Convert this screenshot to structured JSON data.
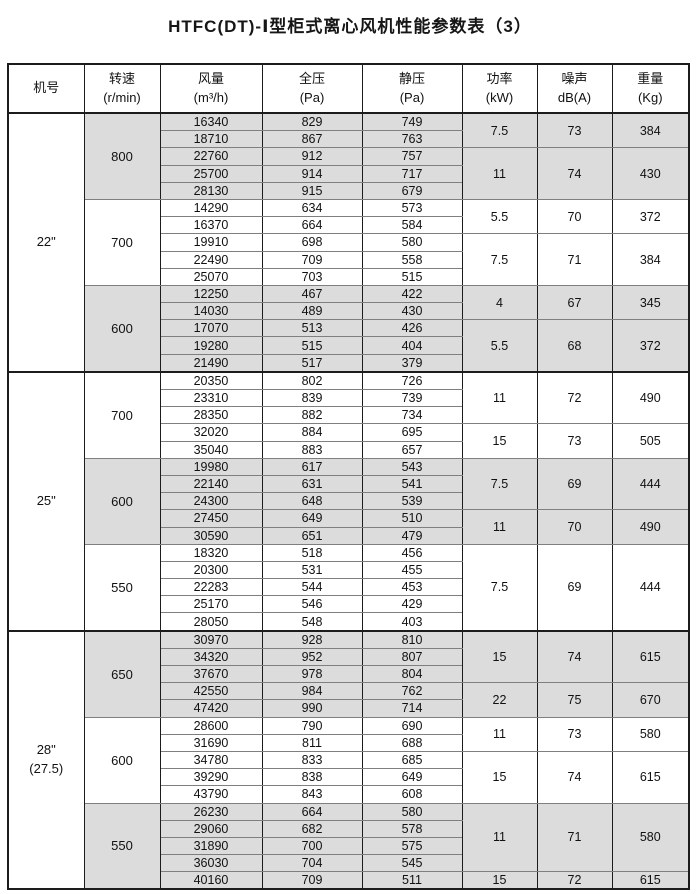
{
  "title": "HTFC(DT)-Ⅰ型柜式离心风机性能参数表（3）",
  "colors": {
    "shaded_row_bg": "#dcdcdc",
    "border_dark": "#1c1c1c",
    "border_inner": "#7f7f7f"
  },
  "table": {
    "headers": [
      {
        "line1": "机号",
        "line2": ""
      },
      {
        "line1": "转速",
        "line2": "(r/min)"
      },
      {
        "line1": "风量",
        "line2": "(m³/h)"
      },
      {
        "line1": "全压",
        "line2": "(Pa)"
      },
      {
        "line1": "静压",
        "line2": "(Pa)"
      },
      {
        "line1": "功率",
        "line2": "(kW)"
      },
      {
        "line1": "噪声",
        "line2": "dB(A)"
      },
      {
        "line1": "重量",
        "line2": "(Kg)"
      }
    ],
    "sections": [
      {
        "model_lines": [
          "22\""
        ],
        "blocks": [
          {
            "speed": "800",
            "shaded": true,
            "rows": [
              [
                "16340",
                "829",
                "749"
              ],
              [
                "18710",
                "867",
                "763"
              ],
              [
                "22760",
                "912",
                "757"
              ],
              [
                "25700",
                "914",
                "717"
              ],
              [
                "28130",
                "915",
                "679"
              ]
            ],
            "perf_groups": [
              {
                "span": 2,
                "power": "7.5",
                "noise": "73",
                "weight": "384"
              },
              {
                "span": 3,
                "power": "11",
                "noise": "74",
                "weight": "430"
              }
            ]
          },
          {
            "speed": "700",
            "shaded": false,
            "rows": [
              [
                "14290",
                "634",
                "573"
              ],
              [
                "16370",
                "664",
                "584"
              ],
              [
                "19910",
                "698",
                "580"
              ],
              [
                "22490",
                "709",
                "558"
              ],
              [
                "25070",
                "703",
                "515"
              ]
            ],
            "perf_groups": [
              {
                "span": 2,
                "power": "5.5",
                "noise": "70",
                "weight": "372"
              },
              {
                "span": 3,
                "power": "7.5",
                "noise": "71",
                "weight": "384"
              }
            ]
          },
          {
            "speed": "600",
            "shaded": true,
            "rows": [
              [
                "12250",
                "467",
                "422"
              ],
              [
                "14030",
                "489",
                "430"
              ],
              [
                "17070",
                "513",
                "426"
              ],
              [
                "19280",
                "515",
                "404"
              ],
              [
                "21490",
                "517",
                "379"
              ]
            ],
            "perf_groups": [
              {
                "span": 2,
                "power": "4",
                "noise": "67",
                "weight": "345"
              },
              {
                "span": 3,
                "power": "5.5",
                "noise": "68",
                "weight": "372"
              }
            ]
          }
        ]
      },
      {
        "model_lines": [
          "25\""
        ],
        "blocks": [
          {
            "speed": "700",
            "shaded": false,
            "rows": [
              [
                "20350",
                "802",
                "726"
              ],
              [
                "23310",
                "839",
                "739"
              ],
              [
                "28350",
                "882",
                "734"
              ],
              [
                "32020",
                "884",
                "695"
              ],
              [
                "35040",
                "883",
                "657"
              ]
            ],
            "perf_groups": [
              {
                "span": 3,
                "power": "11",
                "noise": "72",
                "weight": "490"
              },
              {
                "span": 2,
                "power": "15",
                "noise": "73",
                "weight": "505"
              }
            ]
          },
          {
            "speed": "600",
            "shaded": true,
            "rows": [
              [
                "19980",
                "617",
                "543"
              ],
              [
                "22140",
                "631",
                "541"
              ],
              [
                "24300",
                "648",
                "539"
              ],
              [
                "27450",
                "649",
                "510"
              ],
              [
                "30590",
                "651",
                "479"
              ]
            ],
            "perf_groups": [
              {
                "span": 3,
                "power": "7.5",
                "noise": "69",
                "weight": "444"
              },
              {
                "span": 2,
                "power": "11",
                "noise": "70",
                "weight": "490"
              }
            ]
          },
          {
            "speed": "550",
            "shaded": false,
            "rows": [
              [
                "18320",
                "518",
                "456"
              ],
              [
                "20300",
                "531",
                "455"
              ],
              [
                "22283",
                "544",
                "453"
              ],
              [
                "25170",
                "546",
                "429"
              ],
              [
                "28050",
                "548",
                "403"
              ]
            ],
            "perf_groups": [
              {
                "span": 5,
                "power": "7.5",
                "noise": "69",
                "weight": "444"
              }
            ]
          }
        ]
      },
      {
        "model_lines": [
          "28\"",
          "(27.5)"
        ],
        "blocks": [
          {
            "speed": "650",
            "shaded": true,
            "rows": [
              [
                "30970",
                "928",
                "810"
              ],
              [
                "34320",
                "952",
                "807"
              ],
              [
                "37670",
                "978",
                "804"
              ],
              [
                "42550",
                "984",
                "762"
              ],
              [
                "47420",
                "990",
                "714"
              ]
            ],
            "perf_groups": [
              {
                "span": 3,
                "power": "15",
                "noise": "74",
                "weight": "615"
              },
              {
                "span": 2,
                "power": "22",
                "noise": "75",
                "weight": "670"
              }
            ]
          },
          {
            "speed": "600",
            "shaded": false,
            "rows": [
              [
                "28600",
                "790",
                "690"
              ],
              [
                "31690",
                "811",
                "688"
              ],
              [
                "34780",
                "833",
                "685"
              ],
              [
                "39290",
                "838",
                "649"
              ],
              [
                "43790",
                "843",
                "608"
              ]
            ],
            "perf_groups": [
              {
                "span": 2,
                "power": "11",
                "noise": "73",
                "weight": "580"
              },
              {
                "span": 3,
                "power": "15",
                "noise": "74",
                "weight": "615"
              }
            ]
          },
          {
            "speed": "550",
            "shaded": true,
            "rows": [
              [
                "26230",
                "664",
                "580"
              ],
              [
                "29060",
                "682",
                "578"
              ],
              [
                "31890",
                "700",
                "575"
              ],
              [
                "36030",
                "704",
                "545"
              ],
              [
                "40160",
                "709",
                "511"
              ]
            ],
            "perf_groups": [
              {
                "span": 4,
                "power": "11",
                "noise": "71",
                "weight": "580"
              },
              {
                "span": 1,
                "power": "15",
                "noise": "72",
                "weight": "615"
              }
            ]
          }
        ]
      }
    ]
  }
}
